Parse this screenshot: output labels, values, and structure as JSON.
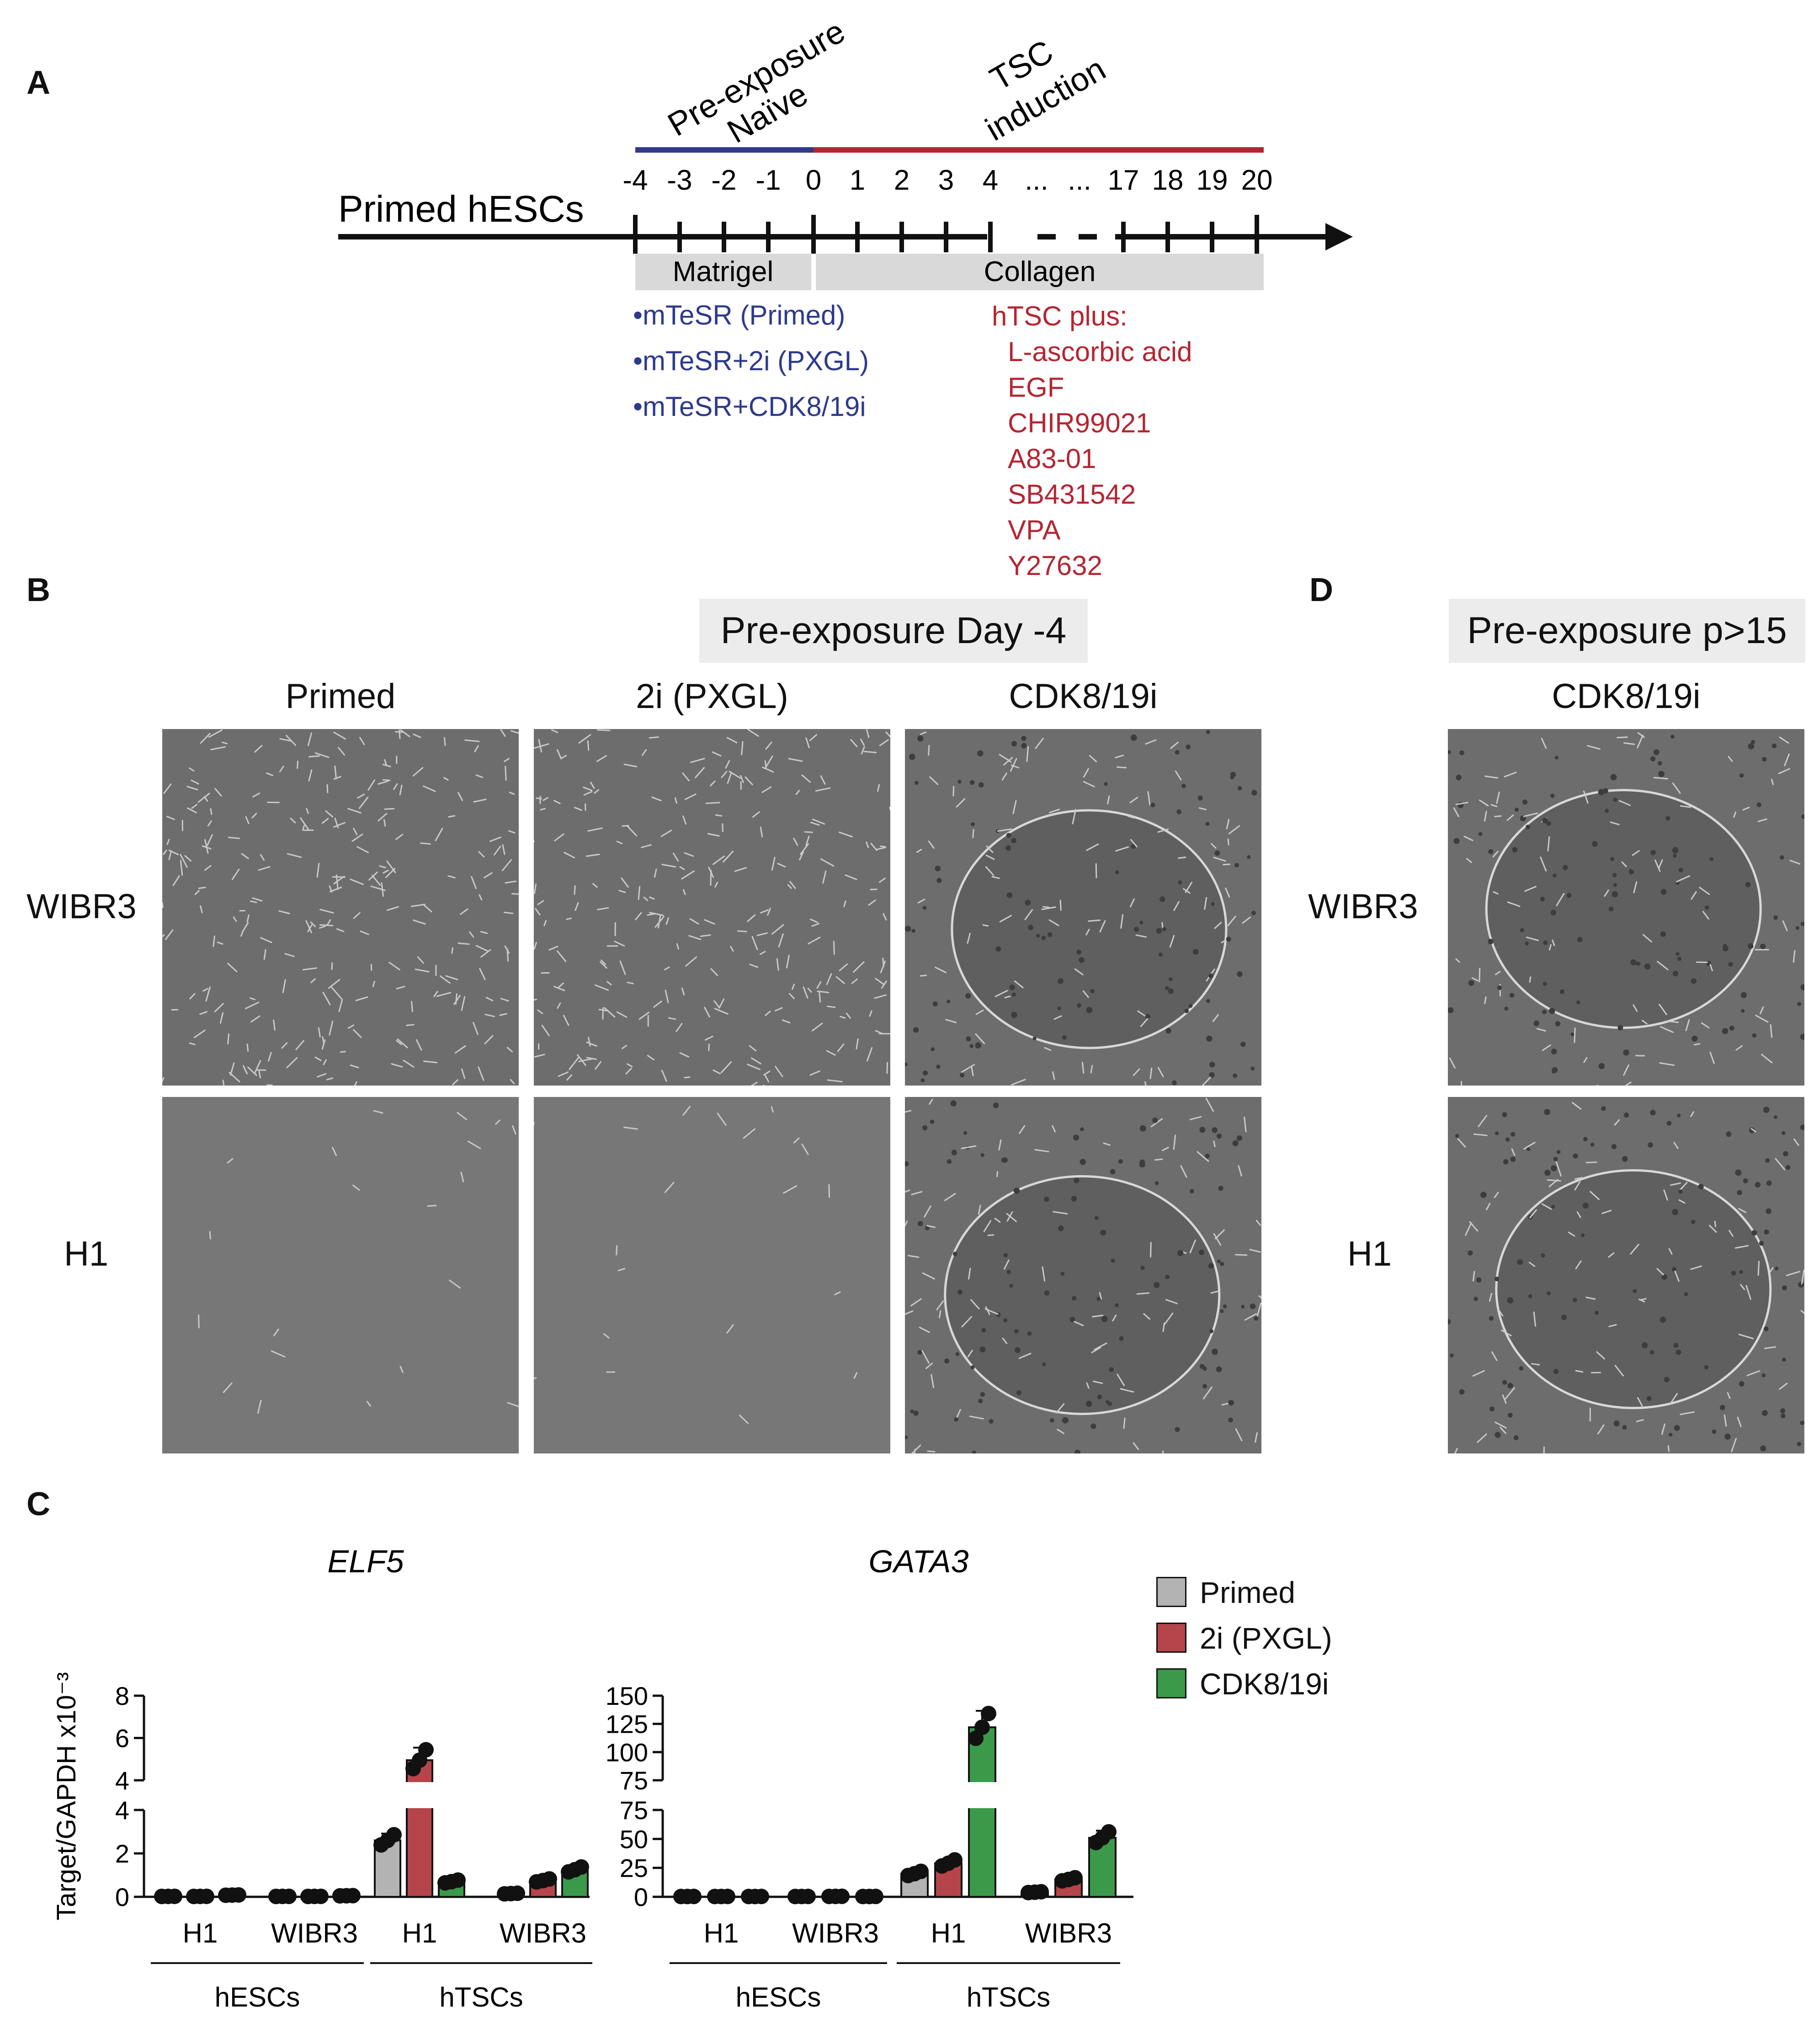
{
  "panels": {
    "a": "A",
    "b": "B",
    "c": "C",
    "d": "D"
  },
  "timeline": {
    "start_label": "Primed hESCs",
    "phase1_line1": "Pre-exposure",
    "phase1_line2": "Naïve",
    "phase2_line1": "TSC",
    "phase2_line2": "induction",
    "day_labels": [
      "-4",
      "-3",
      "-2",
      "-1",
      "0",
      "1",
      "2",
      "3",
      "4",
      "...",
      "...",
      "17",
      "18",
      "19",
      "20"
    ],
    "substrate1": "Matrigel",
    "substrate2": "Collagen",
    "media": [
      "•mTeSR (Primed)",
      "•mTeSR+2i (PXGL)",
      "•mTeSR+CDK8/19i"
    ],
    "htsc_title": "hTSC plus:",
    "htsc_items": [
      "L-ascorbic acid",
      "EGF",
      "CHIR99021",
      "A83-01",
      "SB431542",
      "VPA",
      "Y27632"
    ],
    "color_blue": "#2e3a8c",
    "color_red": "#b52532"
  },
  "panel_b": {
    "header": "Pre-exposure Day -4",
    "columns": [
      "Primed",
      "2i (PXGL)",
      "CDK8/19i"
    ],
    "rows": [
      "WIBR3",
      "H1"
    ]
  },
  "panel_d": {
    "header": "Pre-exposure p>15",
    "column": "CDK8/19i",
    "rows": [
      "WIBR3",
      "H1"
    ]
  },
  "panel_c": {
    "ylabel": "Target/GAPDH x10⁻³",
    "group_cells": [
      "H1",
      "WIBR3",
      "H1",
      "WIBR3"
    ],
    "groups": [
      "hESCs",
      "hTSCs"
    ],
    "legend": [
      {
        "name": "Primed",
        "color": "#b3b3b3"
      },
      {
        "name": "2i (PXGL)",
        "color": "#b5454a"
      },
      {
        "name": "CDK8/19i",
        "color": "#3a9a4a"
      }
    ]
  },
  "chart_data": [
    {
      "type": "bar",
      "title": "ELF5",
      "ylabel": "Target/GAPDH x10⁻³",
      "y_axis_break": {
        "lower": [
          0,
          4
        ],
        "upper": [
          4,
          8
        ]
      },
      "lower_ticks": [
        "0",
        "2",
        "4"
      ],
      "upper_ticks": [
        "4",
        "6",
        "8"
      ],
      "categories": [
        "hESCs H1",
        "hESCs WIBR3",
        "hTSCs H1",
        "hTSCs WIBR3"
      ],
      "series": [
        {
          "name": "Primed",
          "values": [
            0.02,
            0.02,
            2.6,
            0.15
          ]
        },
        {
          "name": "2i (PXGL)",
          "values": [
            0.02,
            0.02,
            4.95,
            0.75
          ]
        },
        {
          "name": "CDK8/19i",
          "values": [
            0.08,
            0.05,
            0.7,
            1.25
          ]
        }
      ]
    },
    {
      "type": "bar",
      "title": "GATA3",
      "ylabel": "",
      "y_axis_break": {
        "lower": [
          0,
          75
        ],
        "upper": [
          75,
          150
        ]
      },
      "lower_ticks": [
        "0",
        "25",
        "50",
        "75"
      ],
      "upper_ticks": [
        "75",
        "100",
        "125",
        "150"
      ],
      "categories": [
        "hESCs H1",
        "hESCs WIBR3",
        "hTSCs H1",
        "hTSCs WIBR3"
      ],
      "series": [
        {
          "name": "Primed",
          "values": [
            0.3,
            0.3,
            20,
            4
          ]
        },
        {
          "name": "2i (PXGL)",
          "values": [
            0.3,
            0.4,
            29,
            15
          ]
        },
        {
          "name": "CDK8/19i",
          "values": [
            0.3,
            0.3,
            122,
            51
          ]
        }
      ]
    }
  ]
}
